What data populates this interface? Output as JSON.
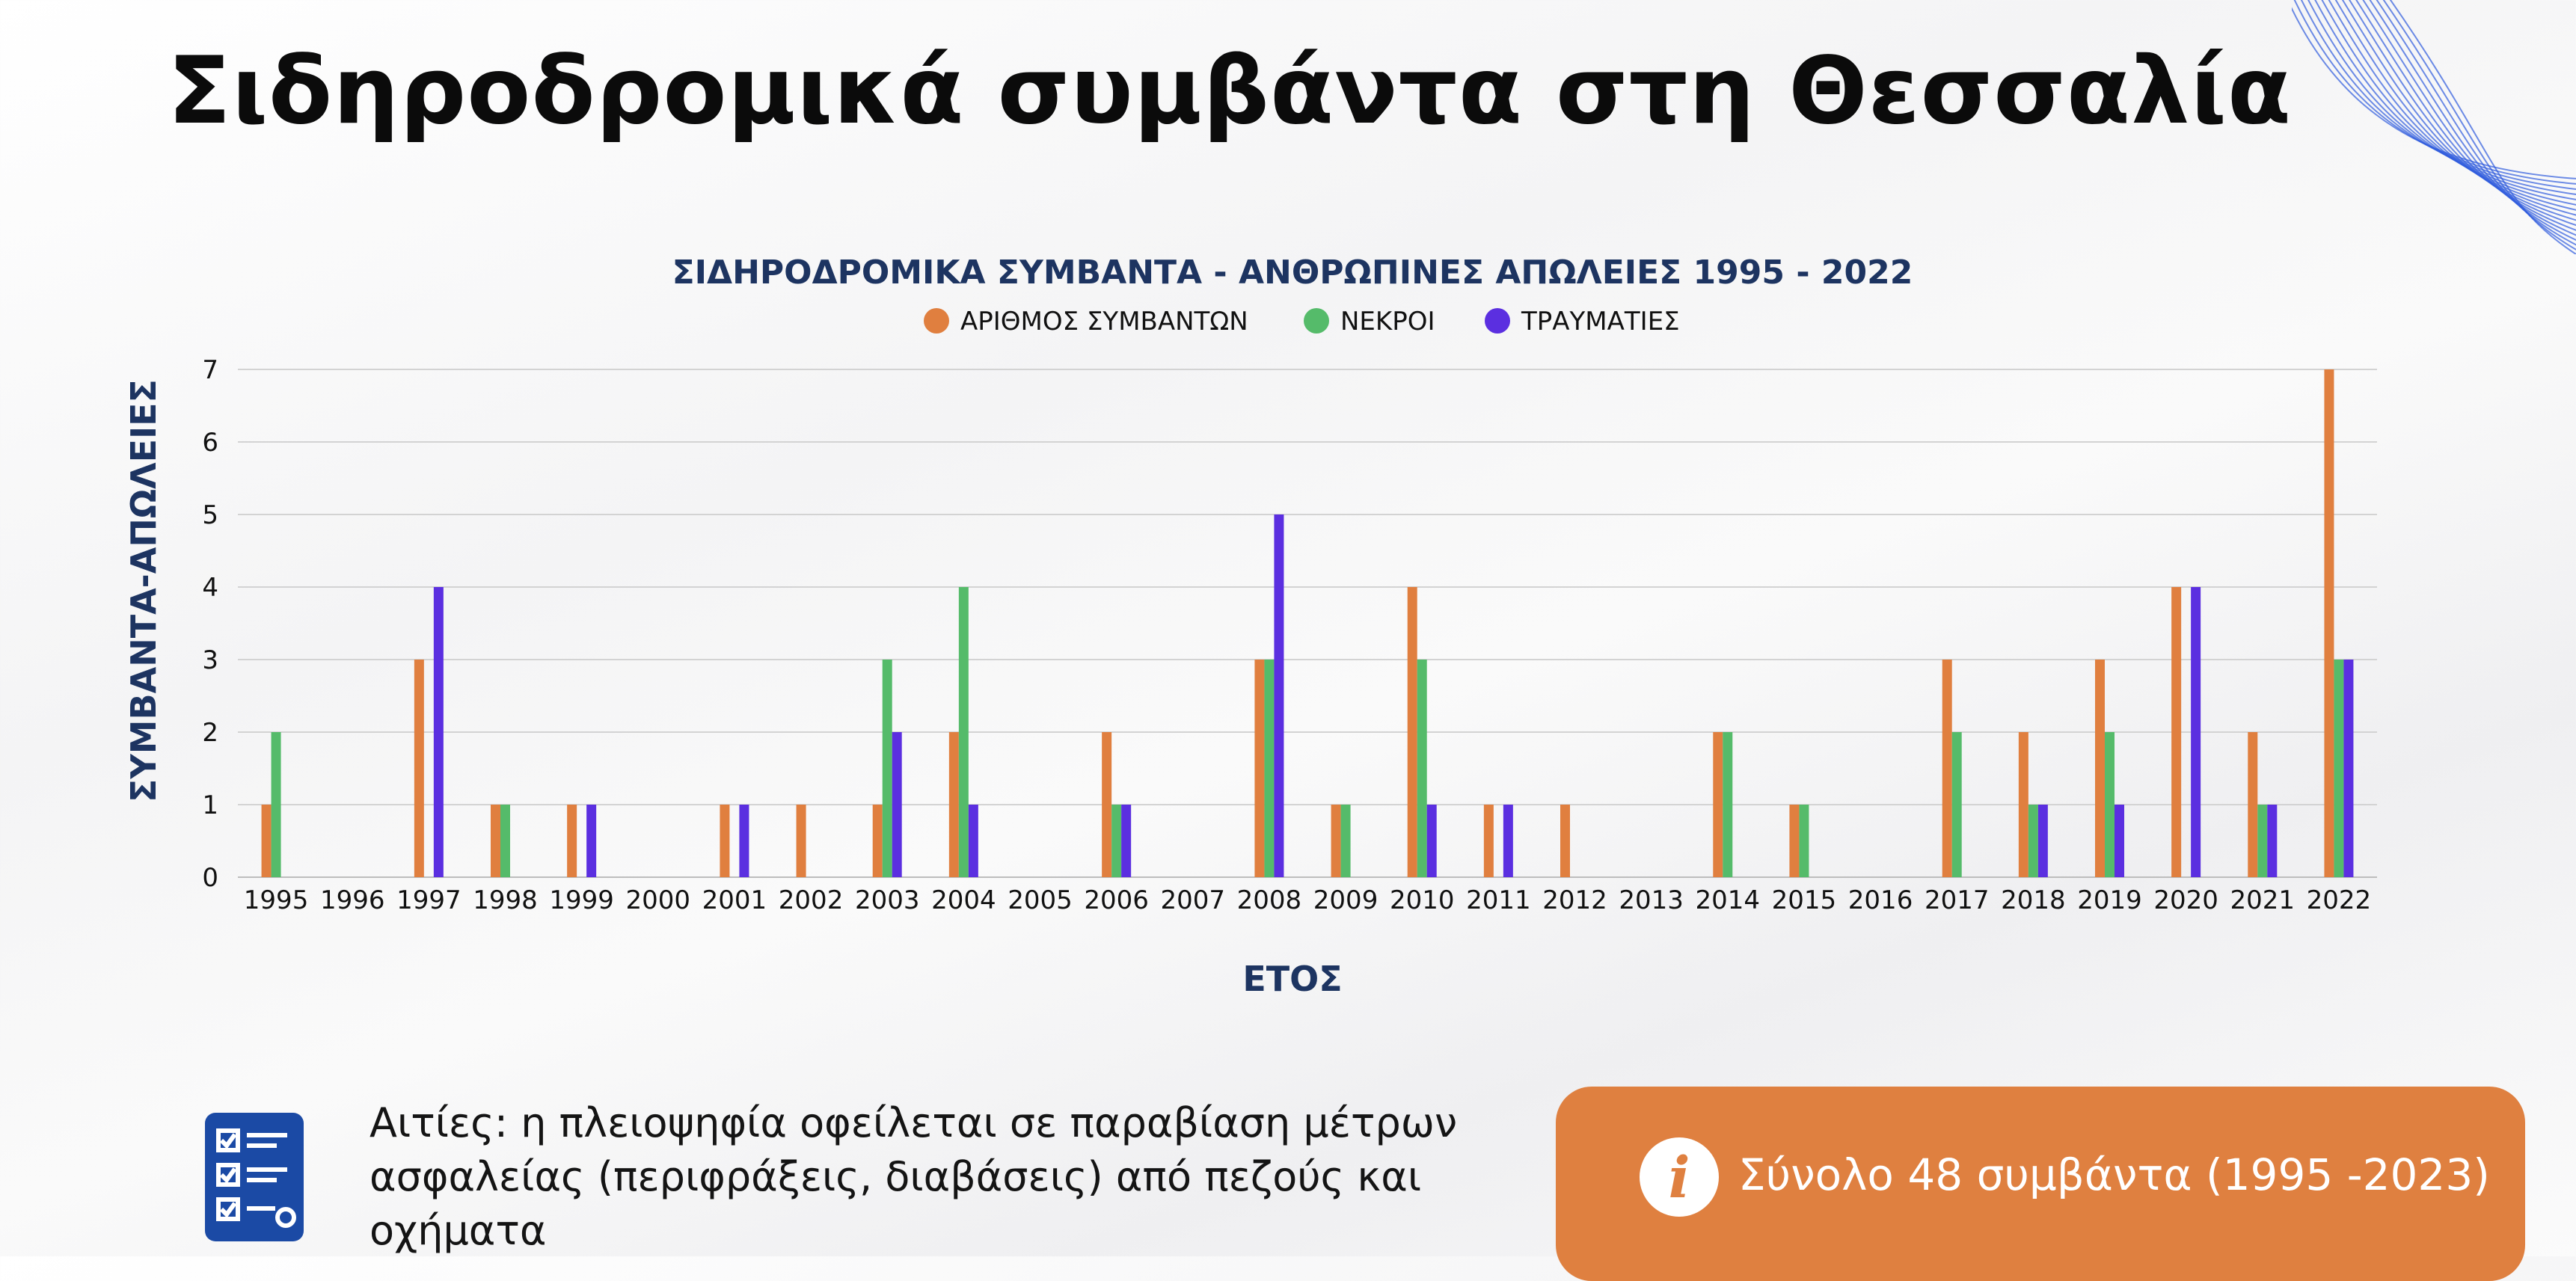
{
  "page": {
    "title": "Σιδηροδρομικά συμβάντα στη Θεσσαλία",
    "causes_text": "Αιτίες: η πλειοψηφία οφείλεται σε παραβίαση μέτρων ασφαλείας (περιφράξεις, διαβάσεις) από πεζούς και οχήματα",
    "summary_text": "Σύνολο 48 συμβάντα (1995 -2023)"
  },
  "icons": {
    "checklist": "checklist-icon",
    "info": "info-icon",
    "decoration": "wave-lines-decoration"
  },
  "colors": {
    "incidents": "#e07f3f",
    "deaths": "#55bb6a",
    "injuries": "#5b2fe0",
    "title_navy": "#1d3461",
    "summary_box": "#df8040",
    "checklist_icon": "#1b4aa5",
    "decoration": "#2f5bdd"
  },
  "chart_data": {
    "type": "bar",
    "title": "ΣΙΔΗΡΟΔΡΟΜΙΚΑ ΣΥΜΒΑΝΤΑ - ΑΝΘΡΩΠΙΝΕΣ ΑΠΩΛΕΙΕΣ 1995 - 2022",
    "xlabel": "ΕΤΟΣ",
    "ylabel": "ΣΥΜΒΑΝΤΑ-ΑΠΩΛΕΙΕΣ",
    "ylim": [
      0,
      7
    ],
    "yticks": [
      0,
      1,
      2,
      3,
      4,
      5,
      6,
      7
    ],
    "grid": true,
    "legend_position": "top-center",
    "categories": [
      "1995",
      "1996",
      "1997",
      "1998",
      "1999",
      "2000",
      "2001",
      "2002",
      "2003",
      "2004",
      "2005",
      "2006",
      "2007",
      "2008",
      "2009",
      "2010",
      "2011",
      "2012",
      "2013",
      "2014",
      "2015",
      "2016",
      "2017",
      "2018",
      "2019",
      "2020",
      "2021",
      "2022"
    ],
    "series": [
      {
        "name": "ΑΡΙΘΜΟΣ ΣΥΜΒΑΝΤΩΝ",
        "color": "#e07f3f",
        "values": [
          1,
          0,
          3,
          1,
          1,
          0,
          1,
          1,
          1,
          2,
          0,
          2,
          0,
          3,
          1,
          4,
          1,
          1,
          0,
          2,
          1,
          0,
          3,
          2,
          3,
          4,
          2,
          7
        ]
      },
      {
        "name": "ΝΕΚΡΟΙ",
        "color": "#55bb6a",
        "values": [
          2,
          0,
          0,
          1,
          0,
          0,
          0,
          0,
          3,
          4,
          0,
          1,
          0,
          3,
          1,
          3,
          0,
          0,
          0,
          2,
          1,
          0,
          2,
          1,
          2,
          0,
          1,
          3
        ]
      },
      {
        "name": "ΤΡΑΥΜΑΤΙΕΣ",
        "color": "#5b2fe0",
        "values": [
          0,
          0,
          4,
          0,
          1,
          0,
          1,
          0,
          2,
          1,
          0,
          1,
          0,
          5,
          0,
          1,
          1,
          0,
          0,
          0,
          0,
          0,
          0,
          1,
          1,
          4,
          1,
          3
        ]
      }
    ]
  }
}
